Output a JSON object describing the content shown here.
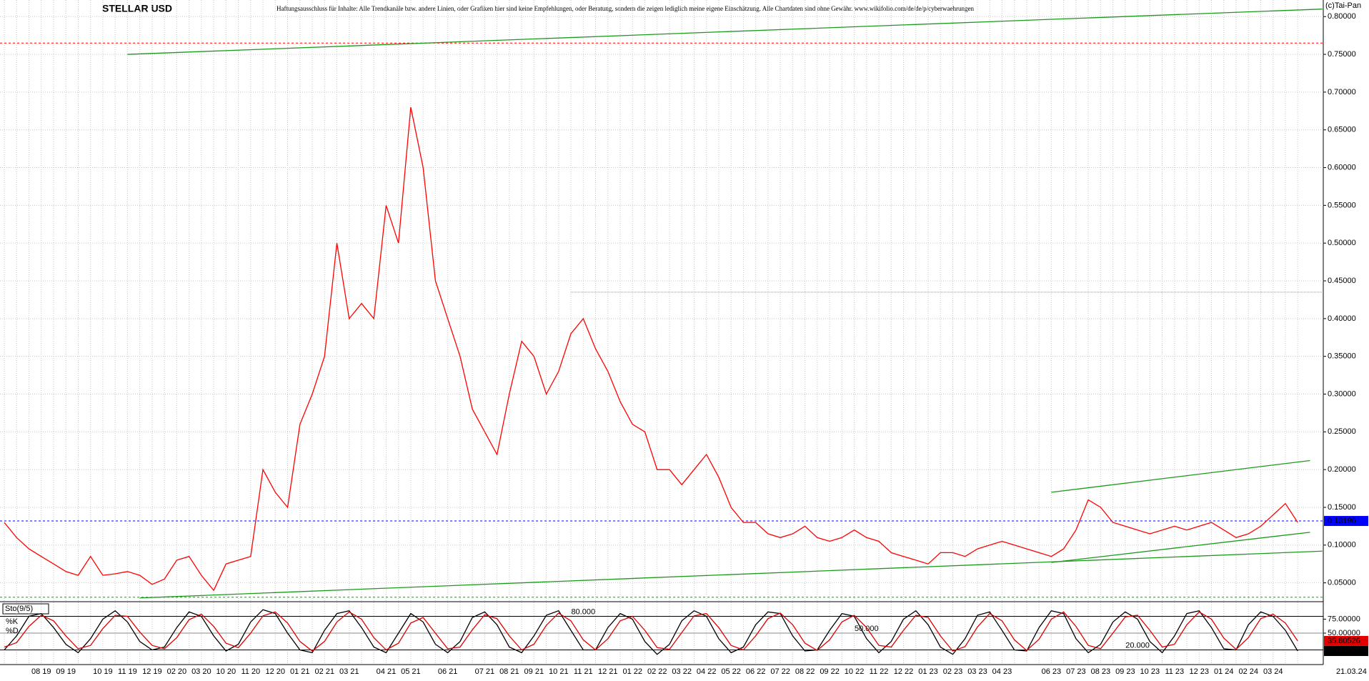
{
  "chart_data": [
    {
      "type": "line",
      "title": "STELLAR USD",
      "subtitle": "Haftungsausschluss für Inhalte: Alle Trendkanäle bzw. andere Linien, oder Grafiken hier sind keine Empfehlungen, oder Beratung, sondern die zeigen lediglich meine eigene Einschätzung. Alle Chartdaten sind ohne Gewähr.  www.wikifolio.com/de/de/p/cyberwaehrungen",
      "copyright": "(c)Tai-Pan",
      "last_date": "21.03.24",
      "categories": [
        null,
        null,
        null,
        "08 19",
        null,
        "09 19",
        null,
        null,
        "10 19",
        null,
        "11 19",
        null,
        "12 19",
        null,
        "02 20",
        null,
        "03 20",
        null,
        "10 20",
        null,
        "11 20",
        null,
        "12 20",
        null,
        "01 21",
        null,
        "02 21",
        null,
        "03 21",
        null,
        null,
        "04 21",
        null,
        "05 21",
        null,
        null,
        "06 21",
        null,
        null,
        "07 21",
        null,
        "08 21",
        null,
        "09 21",
        null,
        "10 21",
        null,
        "11 21",
        null,
        "12 21",
        null,
        "01 22",
        null,
        "02 22",
        null,
        "03 22",
        null,
        "04 22",
        null,
        "05 22",
        null,
        "06 22",
        null,
        "07 22",
        null,
        "08 22",
        null,
        "09 22",
        null,
        "10 22",
        null,
        "11 22",
        null,
        "12 22",
        null,
        "01 23",
        null,
        "02 23",
        null,
        "03 23",
        null,
        "04 23",
        null,
        null,
        null,
        "06 23",
        null,
        "07 23",
        null,
        "08 23",
        null,
        "09 23",
        null,
        "10 23",
        null,
        "11 23",
        null,
        "12 23",
        null,
        "01 24",
        null,
        "02 24",
        null,
        "03 24",
        null,
        null
      ],
      "series": [
        {
          "color": "#ff0000",
          "values": [
            0.13,
            0.11,
            0.095,
            0.085,
            0.075,
            0.065,
            0.06,
            0.085,
            0.06,
            0.062,
            0.065,
            0.06,
            0.048,
            0.055,
            0.08,
            0.085,
            0.06,
            0.04,
            0.075,
            0.08,
            0.085,
            0.2,
            0.17,
            0.15,
            0.26,
            0.3,
            0.35,
            0.5,
            0.4,
            0.42,
            0.4,
            0.55,
            0.5,
            0.68,
            0.6,
            0.45,
            0.4,
            0.35,
            0.28,
            0.25,
            0.22,
            0.3,
            0.37,
            0.35,
            0.3,
            0.33,
            0.38,
            0.4,
            0.36,
            0.33,
            0.29,
            0.26,
            0.25,
            0.2,
            0.2,
            0.18,
            0.2,
            0.22,
            0.19,
            0.15,
            0.13,
            0.13,
            0.115,
            0.11,
            0.115,
            0.125,
            0.11,
            0.105,
            0.11,
            0.12,
            0.11,
            0.105,
            0.09,
            0.085,
            0.08,
            0.075,
            0.09,
            0.09,
            0.085,
            0.095,
            0.1,
            0.105,
            0.1,
            0.095,
            0.09,
            0.085,
            0.095,
            0.12,
            0.16,
            0.15,
            0.13,
            0.125,
            0.12,
            0.115,
            0.12,
            0.125,
            0.12,
            0.125,
            0.13,
            0.12,
            0.11,
            0.115,
            0.125,
            0.14,
            0.155,
            0.13
          ]
        }
      ],
      "ylim": [
        0.026,
        0.822
      ],
      "yticks": [
        {
          "value": 0.05,
          "label": "0.05000"
        },
        {
          "value": 0.1,
          "label": "0.10000"
        },
        {
          "value": 0.15,
          "label": "0.15000"
        },
        {
          "value": 0.2,
          "label": "0.20000"
        },
        {
          "value": 0.25,
          "label": "0.25000"
        },
        {
          "value": 0.3,
          "label": "0.30000"
        },
        {
          "value": 0.35,
          "label": "0.35000"
        },
        {
          "value": 0.4,
          "label": "0.40000"
        },
        {
          "value": 0.45,
          "label": "0.45000"
        },
        {
          "value": 0.5,
          "label": "0.50000"
        },
        {
          "value": 0.55,
          "label": "0.55000"
        },
        {
          "value": 0.6,
          "label": "0.60000"
        },
        {
          "value": 0.65,
          "label": "0.65000"
        },
        {
          "value": 0.7,
          "label": "0.70000"
        },
        {
          "value": 0.75,
          "label": "0.75000"
        },
        {
          "value": 0.8,
          "label": "0.80000"
        }
      ],
      "grid": true,
      "hlines": [
        {
          "value": 0.765,
          "color": "#ff0000",
          "from": 0
        },
        {
          "value": 0.435,
          "color": "#ff6060",
          "from": 46
        },
        {
          "value": 0.031,
          "color": "#00aa00",
          "from": 0
        },
        {
          "value": 0.13196,
          "color": "#0000ff",
          "from": 0,
          "labeled": true
        }
      ],
      "trendlines": [
        {
          "from": [
            10,
            0.75
          ],
          "to": [
            107,
            0.81
          ]
        },
        {
          "from": [
            11,
            0.03
          ],
          "to": [
            107,
            0.092
          ]
        },
        {
          "from": [
            85,
            0.17
          ],
          "to": [
            106,
            0.212
          ]
        },
        {
          "from": [
            85,
            0.077
          ],
          "to": [
            106,
            0.117
          ]
        }
      ]
    },
    {
      "type": "line",
      "title": "Sto(9/5)",
      "series": [
        {
          "name": "%K",
          "color": "#000000",
          "last_label": "17.60942",
          "values": [
            20,
            45,
            80,
            85,
            60,
            30,
            15,
            40,
            75,
            90,
            70,
            35,
            20,
            25,
            60,
            88,
            80,
            45,
            18,
            30,
            70,
            92,
            85,
            50,
            20,
            15,
            55,
            85,
            90,
            60,
            25,
            15,
            50,
            85,
            70,
            30,
            15,
            35,
            78,
            88,
            65,
            25,
            15,
            45,
            82,
            90,
            55,
            20,
            20,
            60,
            85,
            75,
            35,
            12,
            30,
            72,
            90,
            80,
            40,
            15,
            25,
            65,
            88,
            85,
            45,
            18,
            20,
            55,
            85,
            80,
            40,
            15,
            35,
            75,
            90,
            65,
            25,
            12,
            40,
            82,
            88,
            55,
            20,
            18,
            60,
            90,
            85,
            40,
            15,
            30,
            70,
            88,
            75,
            35,
            15,
            45,
            85,
            90,
            60,
            22,
            20,
            65,
            88,
            80,
            55,
            18
          ]
        },
        {
          "name": "%D",
          "color": "#e00000",
          "last_label": "35.80526",
          "values": [
            25,
            33,
            62,
            82,
            72,
            45,
            22,
            28,
            58,
            82,
            80,
            52,
            28,
            22,
            42,
            74,
            84,
            62,
            32,
            24,
            50,
            81,
            88,
            68,
            35,
            18,
            35,
            70,
            88,
            75,
            42,
            20,
            32,
            68,
            78,
            50,
            22,
            25,
            56,
            83,
            76,
            45,
            20,
            30,
            64,
            86,
            72,
            38,
            20,
            40,
            72,
            80,
            55,
            24,
            21,
            51,
            81,
            85,
            60,
            28,
            20,
            45,
            76,
            86,
            65,
            32,
            19,
            38,
            70,
            82,
            60,
            28,
            25,
            55,
            82,
            78,
            45,
            18,
            26,
            61,
            85,
            72,
            38,
            19,
            39,
            75,
            88,
            62,
            28,
            22,
            50,
            79,
            82,
            55,
            25,
            30,
            65,
            88,
            75,
            41,
            21,
            42,
            76,
            84,
            68,
            36
          ]
        }
      ],
      "ylim": [
        -5,
        105
      ],
      "yticks": [
        {
          "value": 75,
          "label": "75.00000"
        },
        {
          "value": 50,
          "label": "50.00000"
        }
      ],
      "levels": [
        {
          "value": 80,
          "label": "80.000",
          "at": 47
        },
        {
          "value": 50,
          "label": "50.000",
          "at": 70
        },
        {
          "value": 20,
          "label": "20.000",
          "at": 92
        }
      ]
    }
  ]
}
